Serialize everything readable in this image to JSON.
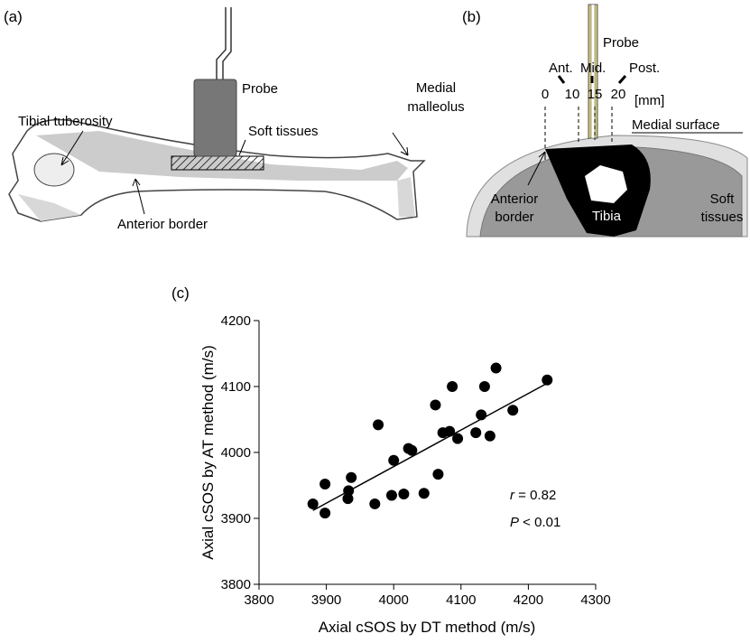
{
  "panel_a": {
    "label": "(a)",
    "probe": "Probe",
    "soft_tissues": "Soft tissues",
    "medial_malleolus": [
      "Medial",
      "malleolus"
    ],
    "tibial_tuberosity": "Tibial tuberosity",
    "anterior_border": "Anterior border"
  },
  "panel_b": {
    "label": "(b)",
    "probe": "Probe",
    "directions": [
      "Ant.",
      "Mid.",
      "Post."
    ],
    "positions": [
      "0",
      "10",
      "15",
      "20"
    ],
    "unit": "[mm]",
    "medial_surface": "Medial surface",
    "anterior_border": [
      "Anterior",
      "border"
    ],
    "tibia": "Tibia",
    "soft_tissues": [
      "Soft",
      "tissues"
    ]
  },
  "chart_data": {
    "type": "scatter",
    "panel_label": "(c)",
    "x_label": "Axial cSOS by DT method (m/s)",
    "y_label": "Axial cSOS by AT method (m/s)",
    "xlim": [
      3800,
      4300
    ],
    "xticks": [
      3800,
      3900,
      4000,
      4100,
      4200,
      4300
    ],
    "ylim": [
      3800,
      4200
    ],
    "yticks": [
      3800,
      3900,
      4000,
      4100,
      4200
    ],
    "color": "#000000",
    "x": [
      3880,
      3898,
      3898,
      3932,
      3933,
      3937,
      3972,
      3977,
      3997,
      4000,
      4015,
      4022,
      4027,
      4045,
      4062,
      4066,
      4073,
      4083,
      4087,
      4095,
      4122,
      4130,
      4135,
      4143,
      4152,
      4177,
      4228
    ],
    "values": [
      3922,
      3908,
      3952,
      3930,
      3942,
      3962,
      3922,
      4042,
      3935,
      3988,
      3937,
      4006,
      4003,
      3938,
      4072,
      3967,
      4030,
      4032,
      4100,
      4021,
      4030,
      4057,
      4100,
      4025,
      4128,
      4064,
      4110
    ],
    "trendline": {
      "x": [
        3880,
        4228
      ],
      "values": [
        3912,
        4105
      ]
    },
    "annotations": [
      {
        "symbol": "r",
        "text": " = 0.82"
      },
      {
        "symbol": "P",
        "text": " < 0.01"
      }
    ]
  }
}
